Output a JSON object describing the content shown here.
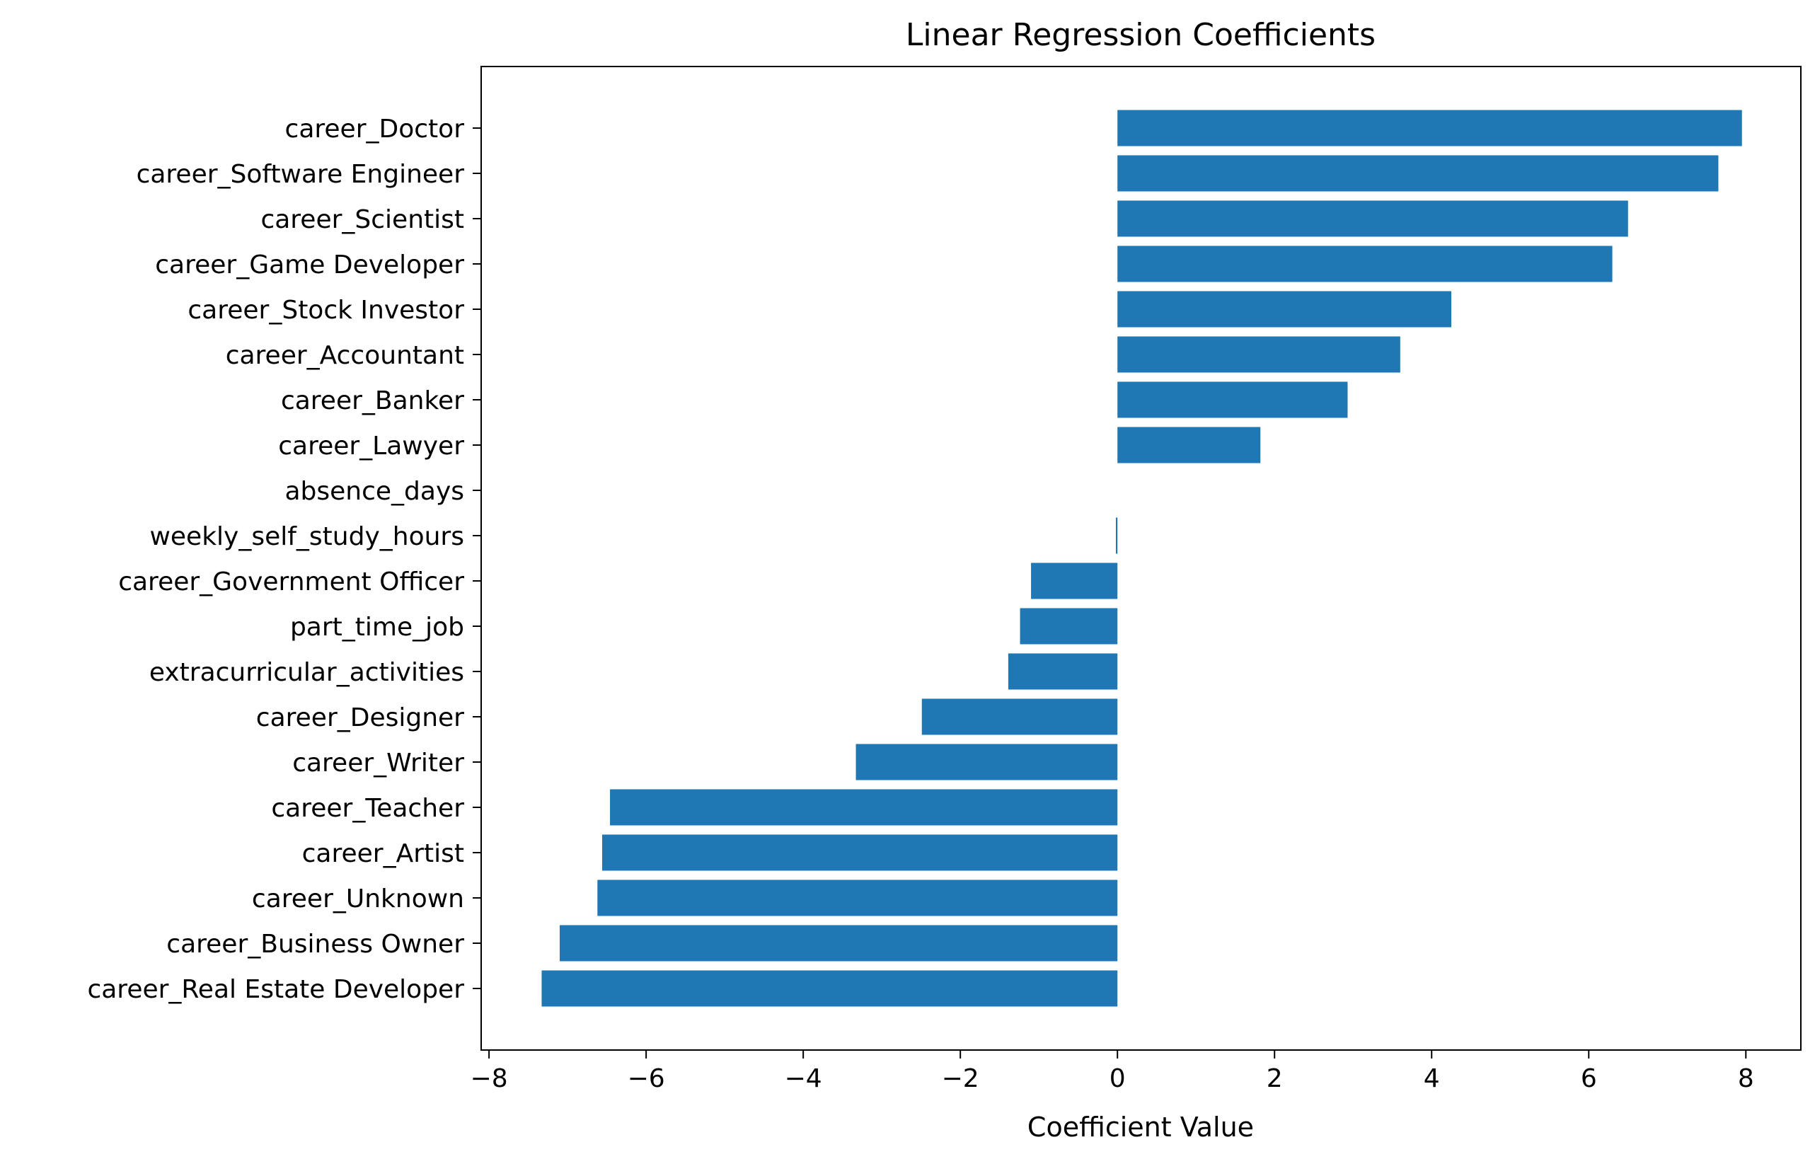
{
  "chart_data": {
    "type": "bar",
    "orientation": "horizontal",
    "title": "Linear Regression Coefficients",
    "xlabel": "Coefficient Value",
    "ylabel": "",
    "xlim": [
      -8.1,
      8.7
    ],
    "xticks": [
      -8,
      -6,
      -4,
      -2,
      0,
      2,
      4,
      6,
      8
    ],
    "xtick_labels": [
      "−8",
      "−6",
      "−4",
      "−2",
      "0",
      "2",
      "4",
      "6",
      "8"
    ],
    "grid": false,
    "bar_color": "#1f77b4",
    "categories": [
      "career_Doctor",
      "career_Software Engineer",
      "career_Scientist",
      "career_Game Developer",
      "career_Stock Investor",
      "career_Accountant",
      "career_Banker",
      "career_Lawyer",
      "absence_days",
      "weekly_self_study_hours",
      "career_Government Officer",
      "part_time_job",
      "extracurricular_activities",
      "career_Designer",
      "career_Writer",
      "career_Teacher",
      "career_Artist",
      "career_Unknown",
      "career_Business Owner",
      "career_Real Estate Developer"
    ],
    "values": [
      7.95,
      7.65,
      6.5,
      6.3,
      4.25,
      3.6,
      2.93,
      1.82,
      0.0,
      -0.02,
      -1.1,
      -1.24,
      -1.39,
      -2.49,
      -3.33,
      -6.46,
      -6.56,
      -6.62,
      -7.1,
      -7.33
    ]
  }
}
